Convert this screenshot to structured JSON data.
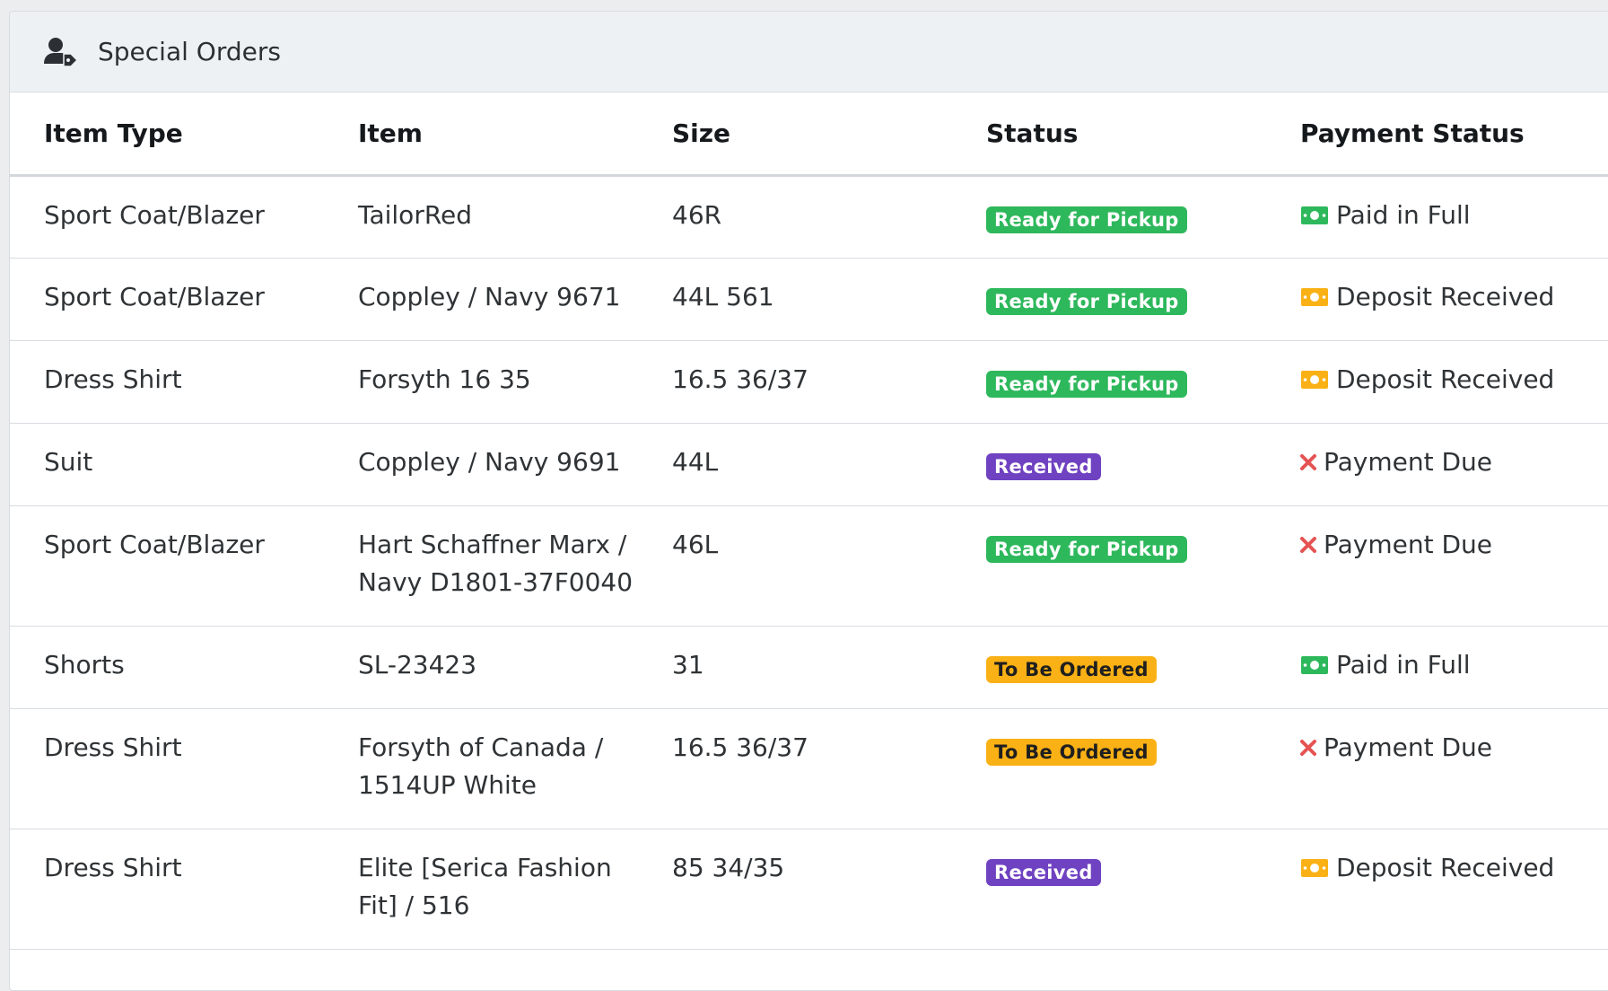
{
  "card": {
    "title": "Special Orders",
    "header_icon": "user-tag-icon"
  },
  "columns": [
    "Item Type",
    "Item",
    "Size",
    "Status",
    "Payment Status"
  ],
  "status_colors": {
    "ready": {
      "bg": "#2eb85c",
      "fg": "#ffffff"
    },
    "received": {
      "bg": "#6f42c1",
      "fg": "#ffffff"
    },
    "ordered": {
      "bg": "#f9b115",
      "fg": "#1f1f1f"
    }
  },
  "payment_icons": {
    "paid": {
      "icon": "money-bill-icon",
      "color": "#2eb85c"
    },
    "deposit": {
      "icon": "money-bill-icon",
      "color": "#f9b115"
    },
    "due": {
      "icon": "x-mark-icon",
      "color": "#e55353"
    }
  },
  "rows": [
    {
      "item_type": "Sport Coat/Blazer",
      "item": "TailorRed",
      "size": "46R",
      "status": "Ready for Pickup",
      "status_kind": "ready",
      "payment": "Paid in Full",
      "payment_kind": "paid"
    },
    {
      "item_type": "Sport Coat/Blazer",
      "item": "Coppley / Navy 9671",
      "size": "44L 561",
      "status": "Ready for Pickup",
      "status_kind": "ready",
      "payment": "Deposit Received",
      "payment_kind": "deposit"
    },
    {
      "item_type": "Dress Shirt",
      "item": "Forsyth 16 35",
      "size": "16.5 36/37",
      "status": "Ready for Pickup",
      "status_kind": "ready",
      "payment": "Deposit Received",
      "payment_kind": "deposit"
    },
    {
      "item_type": "Suit",
      "item": "Coppley / Navy 9691",
      "size": "44L",
      "status": "Received",
      "status_kind": "received",
      "payment": "Payment Due",
      "payment_kind": "due"
    },
    {
      "item_type": "Sport Coat/Blazer",
      "item": "Hart Schaffner Marx / Navy D1801-37F0040",
      "size": "46L",
      "status": "Ready for Pickup",
      "status_kind": "ready",
      "payment": "Payment Due",
      "payment_kind": "due"
    },
    {
      "item_type": "Shorts",
      "item": "SL-23423",
      "size": "31",
      "status": "To Be Ordered",
      "status_kind": "ordered",
      "payment": "Paid in Full",
      "payment_kind": "paid"
    },
    {
      "item_type": "Dress Shirt",
      "item": "Forsyth of Canada / 1514UP White",
      "size": "16.5 36/37",
      "status": "To Be Ordered",
      "status_kind": "ordered",
      "payment": "Payment Due",
      "payment_kind": "due"
    },
    {
      "item_type": "Dress Shirt",
      "item": "Elite [Serica Fashion Fit] / 516",
      "size": "85 34/35",
      "status": "Received",
      "status_kind": "received",
      "payment": "Deposit Received",
      "payment_kind": "deposit"
    }
  ]
}
